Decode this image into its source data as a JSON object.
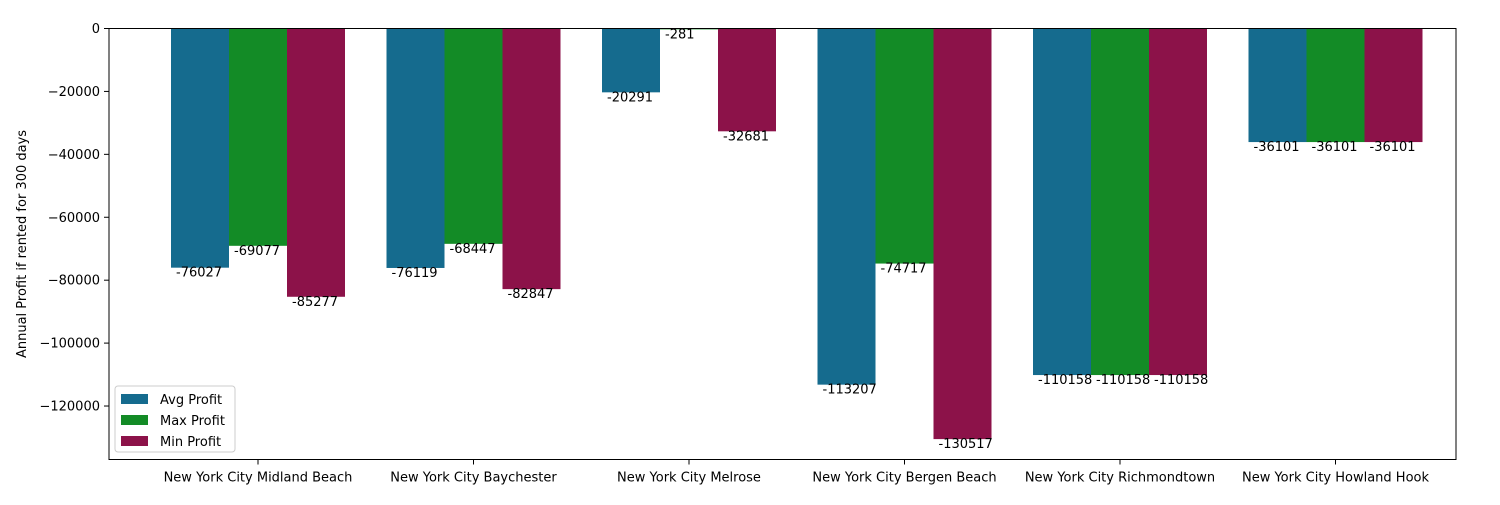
{
  "chart_data": {
    "type": "bar",
    "title": "",
    "xlabel": "",
    "ylabel": "Annual Profit if rented for 300 days",
    "categories": [
      "New York City Midland Beach",
      "New York City Baychester",
      "New York City Melrose",
      "New York City Bergen Beach",
      "New York City Richmondtown",
      "New York City Howland Hook"
    ],
    "series": [
      {
        "name": "Avg Profit",
        "color": "#156b8e",
        "values": [
          -76027,
          -76119,
          -20291,
          -113207,
          -110158,
          -36101
        ]
      },
      {
        "name": "Max Profit",
        "color": "#138b26",
        "values": [
          -69077,
          -68447,
          -281,
          -74717,
          -110158,
          -36101
        ]
      },
      {
        "name": "Min Profit",
        "color": "#8c1249",
        "values": [
          -85277,
          -82847,
          -32681,
          -130517,
          -110158,
          -36101
        ]
      }
    ],
    "ylim": [
      -137000,
      0
    ],
    "yticks": [
      0,
      -20000,
      -40000,
      -60000,
      -80000,
      -100000,
      -120000
    ],
    "ytick_labels": [
      "0",
      "−20000",
      "−40000",
      "−60000",
      "−80000",
      "−100000",
      "−120000"
    ],
    "data_labels": [
      [
        "-76027",
        "-76119",
        "-20291",
        "-113207",
        "-110158",
        "-36101"
      ],
      [
        "-69077",
        "-68447",
        "-281",
        "-74717",
        "-110158",
        "-36101"
      ],
      [
        "-85277",
        "-82847",
        "-32681",
        "-130517",
        "-110158",
        "-36101"
      ]
    ],
    "legend": {
      "placement": "lower-left",
      "entries": [
        "Avg Profit",
        "Max Profit",
        "Min Profit"
      ]
    },
    "grid": false
  }
}
